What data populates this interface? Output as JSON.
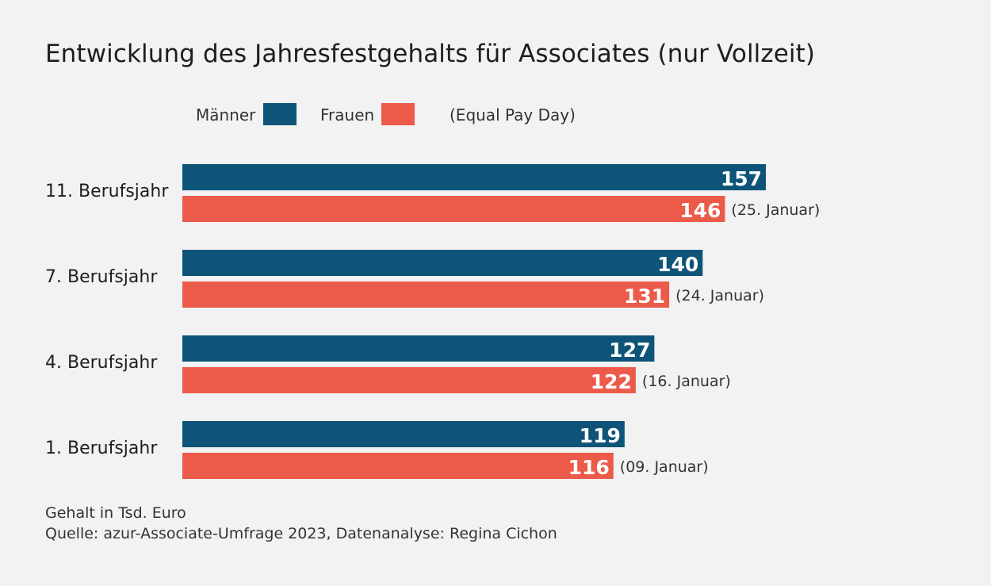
{
  "chart_data": {
    "type": "bar",
    "orientation": "horizontal",
    "title": "Entwicklung des Jahresfestgehalts für Associates (nur Vollzeit)",
    "categories": [
      "11. Berufsjahr",
      "7. Berufsjahr",
      "4. Berufsjahr",
      "1. Berufsjahr"
    ],
    "series": [
      {
        "name": "Männer",
        "color": "#0d5478",
        "values": [
          157,
          140,
          127,
          119
        ]
      },
      {
        "name": "Frauen",
        "color": "#ec5b49",
        "values": [
          146,
          131,
          122,
          116
        ]
      }
    ],
    "legend_extra": "(Equal Pay Day)",
    "annotations": [
      "(25. Januar)",
      "(24. Januar)",
      "(16. Januar)",
      "(09. Januar)"
    ],
    "xlim": [
      0,
      157
    ],
    "grid": false,
    "legend_position": "top"
  },
  "footnotes": {
    "unit": "Gehalt in Tsd. Euro",
    "source": "Quelle: azur-Associate-Umfrage 2023, Datenanalyse: Regina Cichon"
  }
}
